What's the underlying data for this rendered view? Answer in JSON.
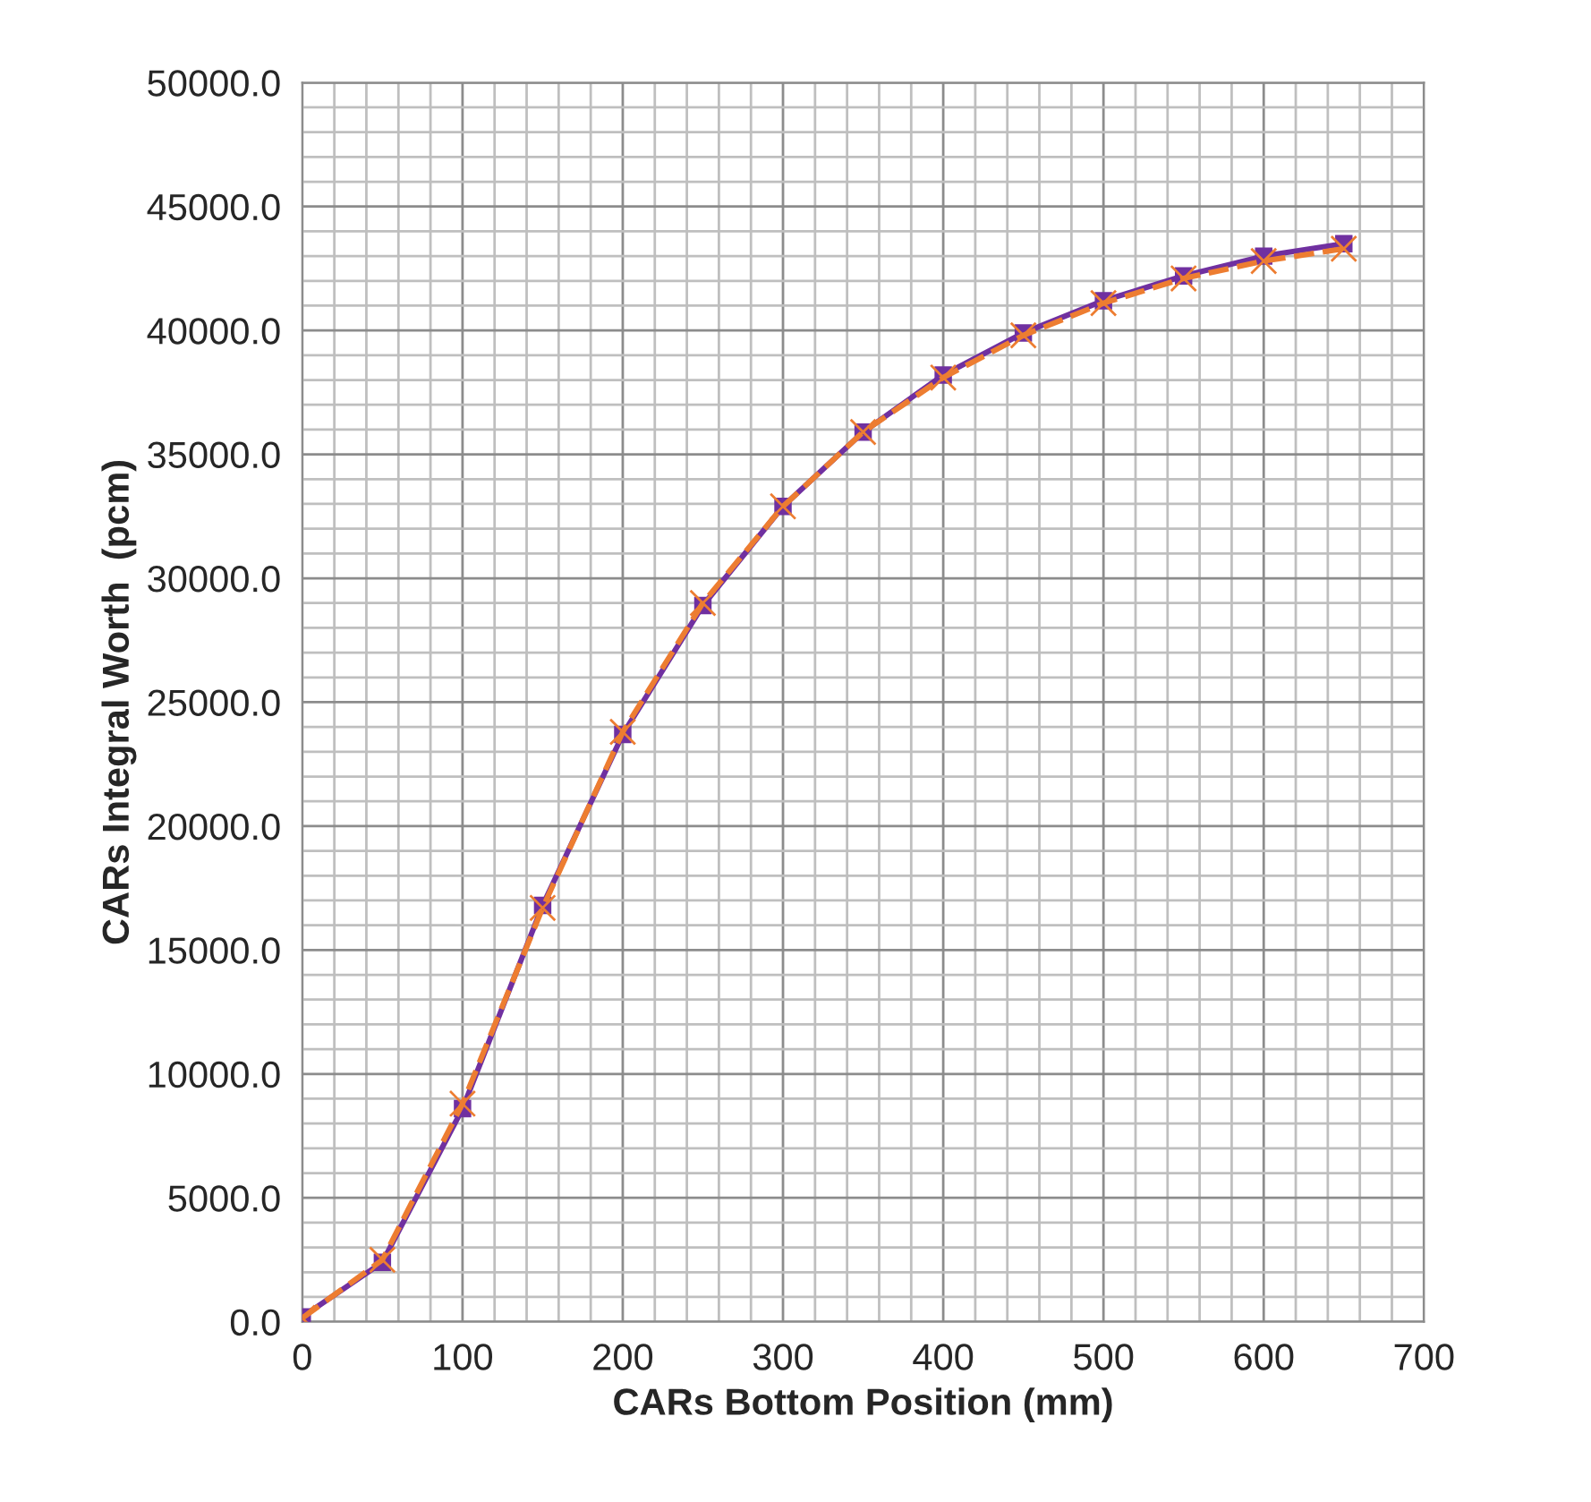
{
  "chart_data": {
    "type": "line",
    "xlabel": "CARs Bottom Position (mm)",
    "ylabel": "CARs Integral Worth  (pcm)",
    "x": [
      0,
      50,
      100,
      150,
      200,
      250,
      300,
      350,
      400,
      450,
      500,
      550,
      600,
      650
    ],
    "series": [
      {
        "color": "#7030a0",
        "marker": "square",
        "line_style": "solid",
        "values": [
          200,
          2400,
          8600,
          16800,
          23700,
          28900,
          32900,
          35900,
          38200,
          39900,
          41200,
          42200,
          43000,
          43500
        ]
      },
      {
        "color": "#ed7d31",
        "marker": "cross",
        "line_style": "dashed",
        "values": [
          150,
          2500,
          8800,
          16700,
          23800,
          29000,
          32900,
          35900,
          38100,
          39800,
          41100,
          42100,
          42800,
          43300
        ]
      }
    ],
    "xlim": [
      0,
      700
    ],
    "xticks": [
      0,
      100,
      200,
      300,
      400,
      500,
      600,
      700
    ],
    "ylim": [
      0,
      50000
    ],
    "yticks": [
      {
        "value": 0,
        "label": "0.0"
      },
      {
        "value": 5000,
        "label": "5000.0"
      },
      {
        "value": 10000,
        "label": "10000.0"
      },
      {
        "value": 15000,
        "label": "15000.0"
      },
      {
        "value": 20000,
        "label": "20000.0"
      },
      {
        "value": 25000,
        "label": "25000.0"
      },
      {
        "value": 30000,
        "label": "30000.0"
      },
      {
        "value": 35000,
        "label": "35000.0"
      },
      {
        "value": 40000,
        "label": "40000.0"
      },
      {
        "value": 45000,
        "label": "45000.0"
      },
      {
        "value": 50000,
        "label": "50000.0"
      }
    ],
    "grid": true
  }
}
